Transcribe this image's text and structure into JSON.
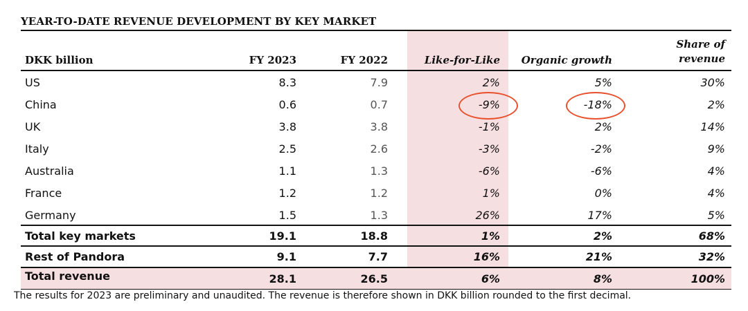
{
  "title": "YEAR-TO-DATE REVENUE DEVELOPMENT BY KEY MARKET",
  "headers": {
    "label": "DKK billion",
    "fy2023": "FY 2023",
    "fy2022": "FY 2022",
    "lfl": "Like-for-Like",
    "organic": "Organic growth",
    "share_line1": "Share of",
    "share_line2": "revenue"
  },
  "rows": [
    {
      "label": "US",
      "fy2023": "8.3",
      "fy2022": "7.9",
      "lfl": "2%",
      "organic": "5%",
      "share": "30%"
    },
    {
      "label": "China",
      "fy2023": "0.6",
      "fy2022": "0.7",
      "lfl": "-9%",
      "organic": "-18%",
      "share": "2%"
    },
    {
      "label": "UK",
      "fy2023": "3.8",
      "fy2022": "3.8",
      "lfl": "-1%",
      "organic": "2%",
      "share": "14%"
    },
    {
      "label": "Italy",
      "fy2023": "2.5",
      "fy2022": "2.6",
      "lfl": "-3%",
      "organic": "-2%",
      "share": "9%"
    },
    {
      "label": "Australia",
      "fy2023": "1.1",
      "fy2022": "1.3",
      "lfl": "-6%",
      "organic": "-6%",
      "share": "4%"
    },
    {
      "label": "France",
      "fy2023": "1.2",
      "fy2022": "1.2",
      "lfl": "1%",
      "organic": "0%",
      "share": "4%"
    },
    {
      "label": "Germany",
      "fy2023": "1.5",
      "fy2022": "1.3",
      "lfl": "26%",
      "organic": "17%",
      "share": "5%"
    }
  ],
  "totals": [
    {
      "label": "Total key markets",
      "fy2023": "19.1",
      "fy2022": "18.8",
      "lfl": "1%",
      "organic": "2%",
      "share": "68%"
    },
    {
      "label": "Rest of Pandora",
      "fy2023": "9.1",
      "fy2022": "7.7",
      "lfl": "16%",
      "organic": "21%",
      "share": "32%"
    },
    {
      "label": "Total revenue",
      "fy2023": "28.1",
      "fy2022": "26.5",
      "lfl": "6%",
      "organic": "8%",
      "share": "100%"
    }
  ],
  "footnote": "The results for 2023 are preliminary and unaudited. The revenue is therefore shown in DKK billion rounded to the first decimal.",
  "colors": {
    "highlight_band": "#f6dfe1",
    "annotation_circle": "#e8502e"
  }
}
